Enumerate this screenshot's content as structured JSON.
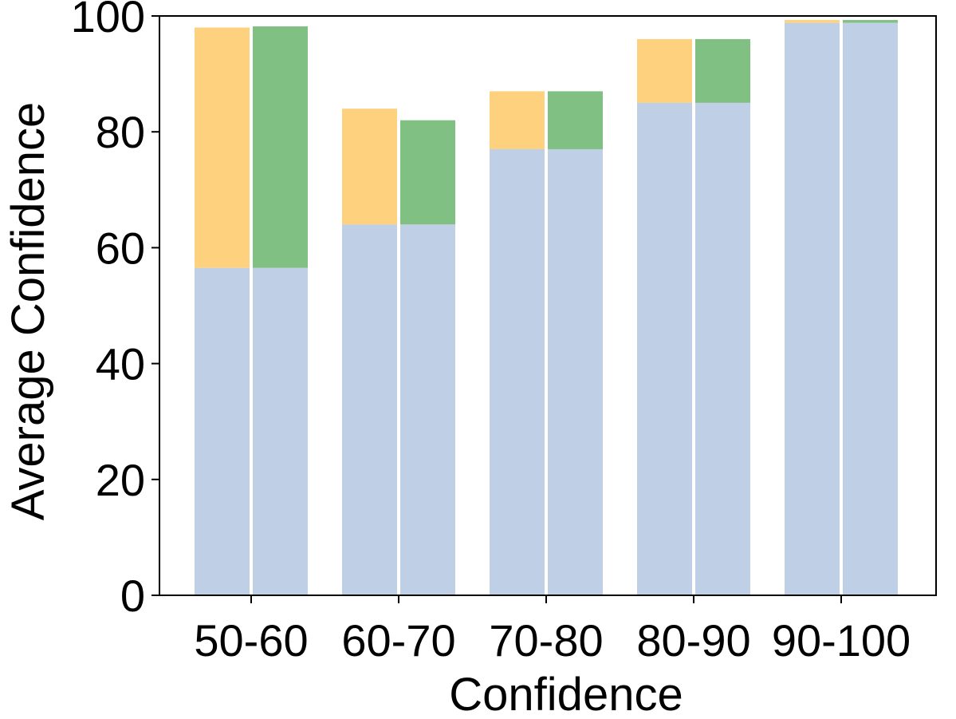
{
  "chart_data": {
    "type": "bar",
    "xlabel": "Confidence",
    "ylabel": "Average Confidence",
    "ylim": [
      0,
      100
    ],
    "yticks": [
      0,
      20,
      40,
      60,
      80,
      100
    ],
    "categories": [
      "50-60",
      "60-70",
      "70-80",
      "80-90",
      "90-100"
    ],
    "base_values": [
      56.5,
      64,
      77,
      85,
      98.8
    ],
    "stacked_totals": {
      "left_bars_orange": [
        98,
        84,
        87,
        96,
        99.3
      ],
      "right_bars_green": [
        98.2,
        82,
        87,
        96,
        99.3
      ]
    },
    "grid": false
  },
  "colors": {
    "base": "#bfd0e6",
    "orange": "#fdd17e",
    "green": "#80c082",
    "axis": "#000000"
  }
}
